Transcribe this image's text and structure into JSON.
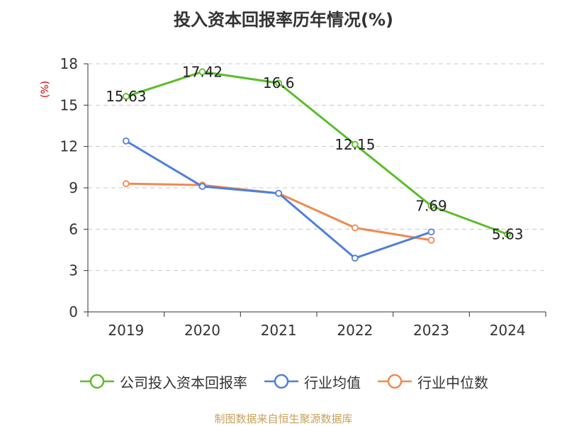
{
  "chart_data": {
    "type": "line",
    "title": "投入资本回报率历年情况(%)",
    "ylabel": "(%)",
    "xlabel": "",
    "categories": [
      "2019",
      "2020",
      "2021",
      "2022",
      "2023",
      "2024"
    ],
    "ylim": [
      0,
      18
    ],
    "yticks": [
      0,
      3,
      6,
      9,
      12,
      15,
      18
    ],
    "grid": true,
    "legend_position": "bottom",
    "series": [
      {
        "name": "公司投入资本回报率",
        "color": "#5bbd2b",
        "values": [
          15.63,
          17.42,
          16.6,
          12.15,
          7.69,
          5.63
        ],
        "labels": [
          "15.63",
          "17.42",
          "16.6",
          "12.15",
          "7.69",
          "5.63"
        ]
      },
      {
        "name": "行业均值",
        "color": "#4f7fdc",
        "values": [
          12.4,
          9.1,
          8.6,
          3.9,
          5.8,
          null
        ]
      },
      {
        "name": "行业中位数",
        "color": "#f08a50",
        "values": [
          9.3,
          9.2,
          8.6,
          6.1,
          5.2,
          null
        ]
      }
    ]
  },
  "source": "制图数据来自恒生聚源数据库"
}
